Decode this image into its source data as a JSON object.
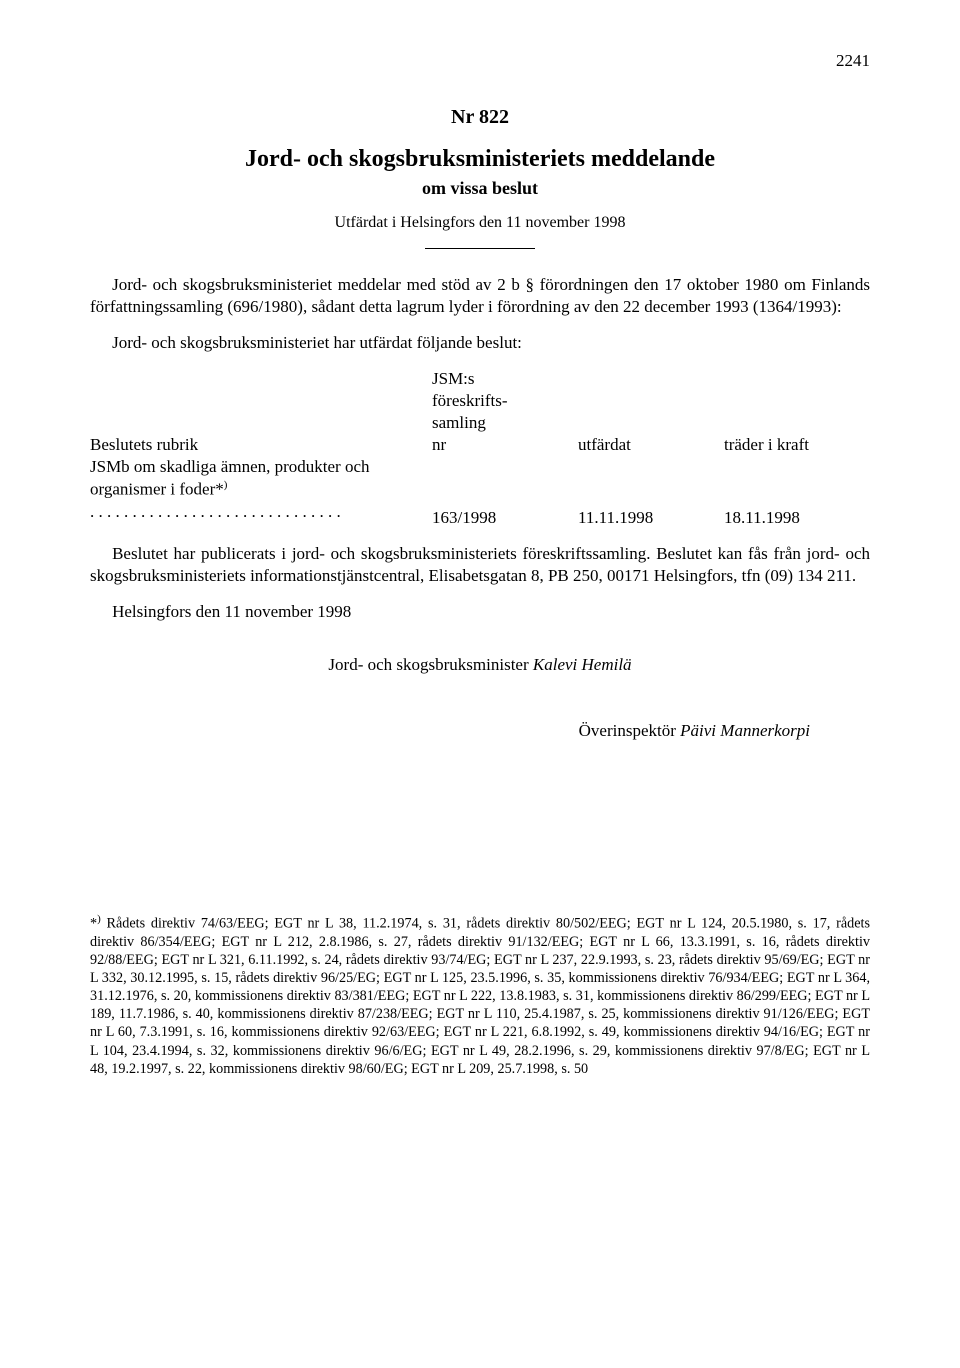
{
  "page_number": "2241",
  "doc_number": "Nr 822",
  "doc_title": "Jord- och skogsbruksministeriets meddelande",
  "doc_subtitle": "om vissa beslut",
  "issued_line": "Utfärdat i Helsingfors den 11 november 1998",
  "intro": "Jord- och skogsbruksministeriet meddelar med stöd av 2 b § förordningen den 17 oktober 1980 om Finlands författningssamling (696/1980), sådant detta lagrum lyder i förordning av den 22 december 1993 (1364/1993):",
  "decree_line": "Jord- och skogsbruksministeriet har utfärdat följande beslut:",
  "table": {
    "headers": {
      "col1": "Beslutets rubrik",
      "col2_line1": "JSM:s",
      "col2_line2": "föreskrifts-",
      "col2_line3": "samling",
      "col2_line4": "nr",
      "col3": "utfärdat",
      "col4": "träder i kraft"
    },
    "row": {
      "title_line1": "JSMb om skadliga ämnen, produkter och",
      "title_line2_prefix": "organismer i foder*",
      "title_line2_sup": ")",
      "dots": " . . . . . . . . . . . . . . . . . . . . . . . . . . . . . .",
      "nr": "163/1998",
      "utfardat": "11.11.1998",
      "trader": "18.11.1998"
    }
  },
  "after_table": "Beslutet har publicerats i jord- och skogsbruksministeriets föreskriftssamling. Beslutet kan fås från jord- och skogsbruksministeriets informationstjänstcentral, Elisabetsgatan 8, PB 250, 00171 Helsingfors, tfn (09) 134 211.",
  "date_line": "Helsingfors den 11 november 1998",
  "signature_center_prefix": "Jord- och skogsbruksminister ",
  "signature_center_name": "Kalevi Hemilä",
  "signature_right_prefix": "Överinspektör ",
  "signature_right_name": "Päivi Mannerkorpi",
  "footnote_star": "*",
  "footnote_sup": ")",
  "footnote_body": " Rådets direktiv 74/63/EEG; EGT nr L 38, 11.2.1974, s. 31, rådets direktiv 80/502/EEG; EGT nr L 124, 20.5.1980, s. 17, rådets direktiv 86/354/EEG; EGT nr L 212, 2.8.1986, s. 27, rådets direktiv 91/132/EEG; EGT nr L 66, 13.3.1991, s. 16, rådets direktiv 92/88/EEG; EGT nr L 321, 6.11.1992, s. 24, rådets direktiv 93/74/EG; EGT nr L 237, 22.9.1993, s. 23, rådets direktiv 95/69/EG; EGT nr L 332, 30.12.1995, s. 15, rådets direktiv 96/25/EG; EGT nr L 125, 23.5.1996, s. 35, kommissionens direktiv 76/934/EEG; EGT nr L 364, 31.12.1976, s. 20, kommissionens direktiv 83/381/EEG; EGT nr L 222, 13.8.1983, s. 31, kommissionens direktiv 86/299/EEG; EGT nr L 189, 11.7.1986, s. 40, kommissionens direktiv 87/238/EEG; EGT nr L 110, 25.4.1987, s. 25, kommissionens direktiv 91/126/EEG; EGT nr L 60, 7.3.1991, s. 16, kommissionens direktiv 92/63/EEG; EGT nr L 221, 6.8.1992, s. 49, kommissionens direktiv 94/16/EG; EGT nr L 104, 23.4.1994, s. 32, kommissionens direktiv 96/6/EG; EGT nr L 49, 28.2.1996, s. 29, kommissionens direktiv 97/8/EG; EGT nr L 48, 19.2.1997, s. 22, kommissionens direktiv 98/60/EG; EGT nr L 209, 25.7.1998, s. 50"
}
